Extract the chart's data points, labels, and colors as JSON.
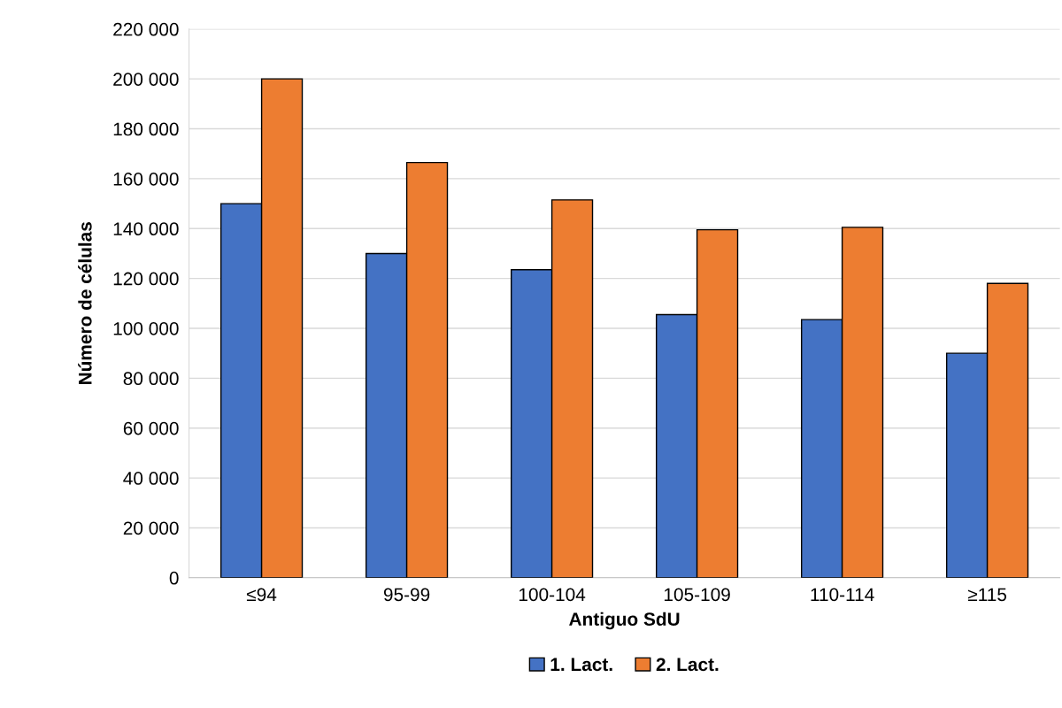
{
  "chart_data": {
    "type": "bar",
    "xlabel": "Antiguo SdU",
    "ylabel": "Número de células",
    "categories": [
      "≤94",
      "95-99",
      "100-104",
      "105-109",
      "110-114",
      "≥115"
    ],
    "series": [
      {
        "name": "1. Lact.",
        "color": "#4472c4",
        "values": [
          150000,
          130000,
          123500,
          105500,
          103500,
          90000
        ]
      },
      {
        "name": "2. Lact.",
        "color": "#ed7d31",
        "values": [
          200000,
          166500,
          151500,
          139500,
          140500,
          118000
        ]
      }
    ],
    "ylim": [
      0,
      220000
    ],
    "yticks": [
      {
        "value": 0,
        "label": "0"
      },
      {
        "value": 20000,
        "label": "20 000"
      },
      {
        "value": 40000,
        "label": "40 000"
      },
      {
        "value": 60000,
        "label": "60 000"
      },
      {
        "value": 80000,
        "label": "80 000"
      },
      {
        "value": 100000,
        "label": "100 000"
      },
      {
        "value": 120000,
        "label": "120 000"
      },
      {
        "value": 140000,
        "label": "140 000"
      },
      {
        "value": 160000,
        "label": "160 000"
      },
      {
        "value": 180000,
        "label": "180 000"
      },
      {
        "value": 200000,
        "label": "200 000"
      },
      {
        "value": 220000,
        "label": "220 000"
      }
    ],
    "grid": "y",
    "legend": "bottom"
  }
}
